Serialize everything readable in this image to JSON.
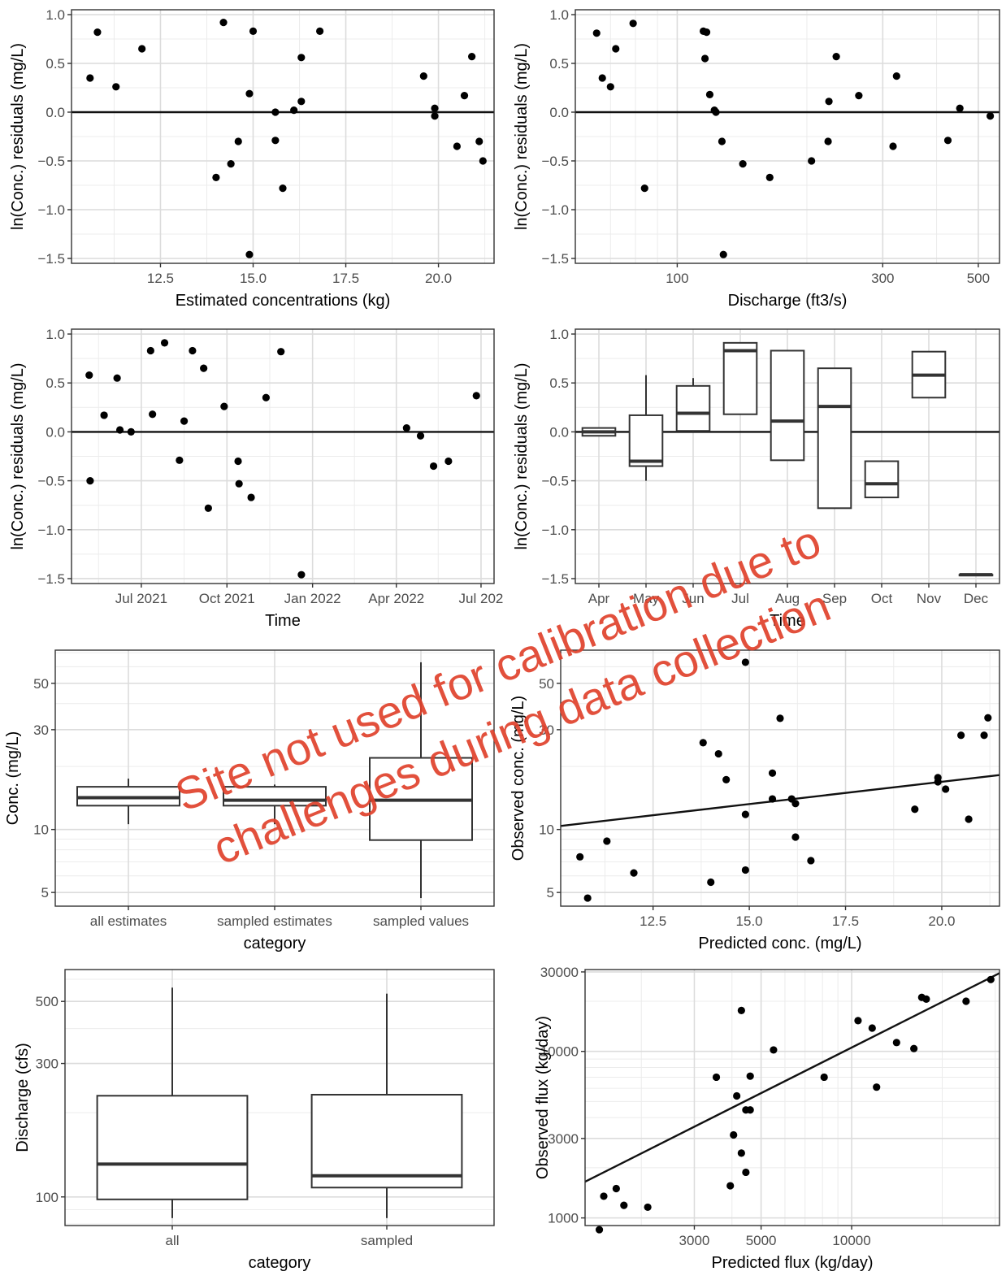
{
  "chart_data": [
    {
      "id": "p1",
      "type": "scatter",
      "xlabel": "Estimated concentrations (kg)",
      "ylabel": "ln(Conc.) residuals (mg/L)",
      "xlim": [
        10.1,
        21.5
      ],
      "ylim": [
        -1.55,
        1.05
      ],
      "xticks": [
        12.5,
        15.0,
        17.5,
        20.0
      ],
      "yticks": [
        -1.5,
        -1.0,
        -0.5,
        0.0,
        0.5,
        1.0
      ],
      "hline": 0,
      "points": [
        [
          10.6,
          0.35
        ],
        [
          10.8,
          0.82
        ],
        [
          11.3,
          0.26
        ],
        [
          12.0,
          0.65
        ],
        [
          14.0,
          -0.67
        ],
        [
          14.2,
          0.92
        ],
        [
          14.4,
          -0.53
        ],
        [
          14.6,
          -0.3
        ],
        [
          14.9,
          0.19
        ],
        [
          14.9,
          -1.46
        ],
        [
          15.0,
          0.83
        ],
        [
          15.6,
          -0.29
        ],
        [
          15.6,
          0.0
        ],
        [
          15.8,
          -0.78
        ],
        [
          16.1,
          0.02
        ],
        [
          16.3,
          0.56
        ],
        [
          16.3,
          0.11
        ],
        [
          16.8,
          0.83
        ],
        [
          19.6,
          0.37
        ],
        [
          19.9,
          0.04
        ],
        [
          19.9,
          -0.04
        ],
        [
          20.5,
          -0.35
        ],
        [
          20.7,
          0.17
        ],
        [
          20.9,
          0.57
        ],
        [
          21.1,
          -0.3
        ],
        [
          21.2,
          -0.5
        ]
      ]
    },
    {
      "id": "p2",
      "type": "scatter",
      "xlabel": "Discharge (ft3/s)",
      "ylabel": "ln(Conc.) residuals (mg/L)",
      "xlog": true,
      "xlim": [
        58,
        560
      ],
      "ylim": [
        -1.55,
        1.05
      ],
      "xticks": [
        100,
        300,
        500
      ],
      "xminor": [
        70,
        80,
        90,
        200,
        400
      ],
      "yticks": [
        -1.5,
        -1.0,
        -0.5,
        0.0,
        0.5,
        1.0
      ],
      "hline": 0,
      "points": [
        [
          65,
          0.81
        ],
        [
          67,
          0.35
        ],
        [
          70,
          0.26
        ],
        [
          72,
          0.65
        ],
        [
          79,
          0.91
        ],
        [
          84,
          -0.78
        ],
        [
          115,
          0.83
        ],
        [
          117,
          0.82
        ],
        [
          116,
          0.55
        ],
        [
          119,
          0.18
        ],
        [
          122,
          0.02
        ],
        [
          123,
          0.0
        ],
        [
          127,
          -0.3
        ],
        [
          128,
          -1.46
        ],
        [
          142,
          -0.53
        ],
        [
          164,
          -0.67
        ],
        [
          205,
          -0.5
        ],
        [
          224,
          -0.3
        ],
        [
          225,
          0.11
        ],
        [
          234,
          0.57
        ],
        [
          264,
          0.17
        ],
        [
          317,
          -0.35
        ],
        [
          323,
          0.37
        ],
        [
          425,
          -0.29
        ],
        [
          453,
          0.04
        ],
        [
          533,
          -0.04
        ]
      ]
    },
    {
      "id": "p3",
      "type": "scatter",
      "xlabel": "Time",
      "ylabel": "ln(Conc.) residuals (mg/L)",
      "xdate": true,
      "xlim": [
        "2021-04-17",
        "2022-07-15"
      ],
      "ylim": [
        -1.55,
        1.05
      ],
      "xticks": [
        "2021-07-01",
        "2021-10-01",
        "2022-01-01",
        "2022-04-01",
        "2022-07-01"
      ],
      "xticklabels": [
        "Jul 2021",
        "Oct 2021",
        "Jan 2022",
        "Apr 2022",
        "Jul 202"
      ],
      "xminor": [
        "2021-05-16",
        "2021-08-16",
        "2021-11-16",
        "2022-02-15",
        "2022-05-16"
      ],
      "yticks": [
        -1.5,
        -1.0,
        -0.5,
        0.0,
        0.5,
        1.0
      ],
      "hline": 0,
      "points": [
        [
          "2021-05-06",
          0.58
        ],
        [
          "2021-05-07",
          -0.5
        ],
        [
          "2021-05-22",
          0.17
        ],
        [
          "2021-06-05",
          0.55
        ],
        [
          "2021-06-08",
          0.02
        ],
        [
          "2021-06-20",
          0.0
        ],
        [
          "2021-07-11",
          0.83
        ],
        [
          "2021-07-13",
          0.18
        ],
        [
          "2021-07-26",
          0.91
        ],
        [
          "2021-08-11",
          -0.29
        ],
        [
          "2021-08-16",
          0.11
        ],
        [
          "2021-08-25",
          0.83
        ],
        [
          "2021-09-06",
          0.65
        ],
        [
          "2021-09-11",
          -0.78
        ],
        [
          "2021-09-28",
          0.26
        ],
        [
          "2021-10-13",
          -0.3
        ],
        [
          "2021-10-14",
          -0.53
        ],
        [
          "2021-10-27",
          -0.67
        ],
        [
          "2021-11-12",
          0.35
        ],
        [
          "2021-11-28",
          0.82
        ],
        [
          "2021-12-20",
          -1.46
        ],
        [
          "2022-04-12",
          0.04
        ],
        [
          "2022-04-27",
          -0.04
        ],
        [
          "2022-05-11",
          -0.35
        ],
        [
          "2022-05-27",
          -0.3
        ],
        [
          "2022-06-26",
          0.37
        ]
      ]
    },
    {
      "id": "p4",
      "type": "box",
      "xlabel": "Time",
      "ylabel": "ln(Conc.) residuals (mg/L)",
      "ylim": [
        -1.55,
        1.05
      ],
      "yticks": [
        -1.5,
        -1.0,
        -0.5,
        0.0,
        0.5,
        1.0
      ],
      "hline": 0,
      "categories": [
        "Apr",
        "May",
        "Jun",
        "Jul",
        "Aug",
        "Sep",
        "Oct",
        "Nov",
        "Dec"
      ],
      "boxes": [
        {
          "cat": "Apr",
          "min": -0.04,
          "q1": -0.04,
          "med": 0.0,
          "q3": 0.04,
          "max": 0.04
        },
        {
          "cat": "May",
          "min": -0.5,
          "q1": -0.35,
          "med": -0.3,
          "q3": 0.17,
          "max": 0.58
        },
        {
          "cat": "Jun",
          "min": 0.0,
          "q1": 0.01,
          "med": 0.19,
          "q3": 0.47,
          "max": 0.55
        },
        {
          "cat": "Jul",
          "min": 0.18,
          "q1": 0.18,
          "med": 0.83,
          "q3": 0.91,
          "max": 0.91
        },
        {
          "cat": "Aug",
          "min": -0.29,
          "q1": -0.29,
          "med": 0.11,
          "q3": 0.83,
          "max": 0.83
        },
        {
          "cat": "Sep",
          "min": -0.78,
          "q1": -0.78,
          "med": 0.26,
          "q3": 0.65,
          "max": 0.65
        },
        {
          "cat": "Oct",
          "min": -0.67,
          "q1": -0.67,
          "med": -0.53,
          "q3": -0.3,
          "max": -0.3
        },
        {
          "cat": "Nov",
          "min": 0.35,
          "q1": 0.35,
          "med": 0.58,
          "q3": 0.82,
          "max": 0.82
        },
        {
          "cat": "Dec",
          "min": -1.46,
          "q1": -1.46,
          "med": -1.46,
          "q3": -1.46,
          "max": -1.46
        }
      ]
    },
    {
      "id": "p5",
      "type": "box",
      "xlabel": "category",
      "ylabel": "Conc. (mg/L)",
      "ylog": true,
      "ylim": [
        4.3,
        72
      ],
      "yticks": [
        5,
        10,
        30,
        50
      ],
      "yminor": [
        6,
        7,
        8,
        9,
        20,
        40,
        60,
        70
      ],
      "categories": [
        "all estimates",
        "sampled estimates",
        "sampled values"
      ],
      "boxes": [
        {
          "cat": "all estimates",
          "min": 10.6,
          "q1": 13.0,
          "med": 14.2,
          "q3": 16.0,
          "max": 17.5
        },
        {
          "cat": "sampled estimates",
          "min": 10.6,
          "q1": 13.0,
          "med": 13.8,
          "q3": 16.0,
          "max": 16.4
        },
        {
          "cat": "sampled values",
          "min": 4.7,
          "q1": 8.9,
          "med": 13.8,
          "q3": 22.0,
          "max": 63.0
        }
      ]
    },
    {
      "id": "p6",
      "type": "scatter",
      "xlabel": "Predicted conc. (mg/L)",
      "ylabel": "Observed conc. (mg/L)",
      "ylog": true,
      "xlim": [
        10.1,
        21.5
      ],
      "ylim": [
        4.3,
        72
      ],
      "xticks": [
        12.5,
        15.0,
        17.5,
        20.0
      ],
      "yticks": [
        5,
        10,
        30,
        50
      ],
      "yminor": [
        6,
        7,
        8,
        9,
        20,
        40,
        60,
        70
      ],
      "line": [
        [
          10.1,
          10.4
        ],
        [
          21.5,
          18.2
        ]
      ],
      "points": [
        [
          10.6,
          7.4
        ],
        [
          10.8,
          4.7
        ],
        [
          11.3,
          8.8
        ],
        [
          12.0,
          6.2
        ],
        [
          13.8,
          26.0
        ],
        [
          14.0,
          5.6
        ],
        [
          14.2,
          23.0
        ],
        [
          14.4,
          17.3
        ],
        [
          14.9,
          11.8
        ],
        [
          14.9,
          6.4
        ],
        [
          14.9,
          63.0
        ],
        [
          15.6,
          14.0
        ],
        [
          15.6,
          18.6
        ],
        [
          15.8,
          34.0
        ],
        [
          16.1,
          14.0
        ],
        [
          16.2,
          13.3
        ],
        [
          16.2,
          9.2
        ],
        [
          16.6,
          7.1
        ],
        [
          19.3,
          12.5
        ],
        [
          19.9,
          17.7
        ],
        [
          19.9,
          16.9
        ],
        [
          20.1,
          15.6
        ],
        [
          20.5,
          28.2
        ],
        [
          20.7,
          11.2
        ],
        [
          21.1,
          28.2
        ],
        [
          21.2,
          34.2
        ]
      ]
    },
    {
      "id": "p7",
      "type": "box",
      "xlabel": "category",
      "ylabel": "Discharge (cfs)",
      "ylog": true,
      "ylim": [
        79,
        650
      ],
      "yticks": [
        100,
        300,
        500
      ],
      "yminor": [
        80,
        90,
        200,
        400,
        600
      ],
      "categories": [
        "all",
        "sampled"
      ],
      "boxes": [
        {
          "cat": "all",
          "min": 84,
          "q1": 98,
          "med": 131,
          "q3": 230,
          "max": 560
        },
        {
          "cat": "sampled",
          "min": 84,
          "q1": 108,
          "med": 119,
          "q3": 232,
          "max": 533
        }
      ]
    },
    {
      "id": "p8",
      "type": "scatter",
      "xlabel": "Predicted flux (kg/day)",
      "ylabel": "Observed flux (kg/day)",
      "xlog": true,
      "ylog": true,
      "xlim": [
        1300,
        31000
      ],
      "ylim": [
        900,
        31000
      ],
      "xticks": [
        3000,
        5000,
        10000
      ],
      "xminor": [
        2000,
        4000,
        6000,
        7000,
        8000,
        9000,
        20000,
        30000
      ],
      "yticks": [
        1000,
        3000,
        10000,
        30000
      ],
      "yminor": [
        2000,
        4000,
        5000,
        6000,
        7000,
        8000,
        9000,
        20000
      ],
      "line": [
        [
          1300,
          1650
        ],
        [
          31000,
          29500
        ]
      ],
      "points": [
        [
          1450,
          850
        ],
        [
          1500,
          1350
        ],
        [
          1650,
          1500
        ],
        [
          1750,
          1190
        ],
        [
          2100,
          1160
        ],
        [
          3550,
          7000
        ],
        [
          3950,
          1560
        ],
        [
          4050,
          3150
        ],
        [
          4150,
          5400
        ],
        [
          4300,
          17600
        ],
        [
          4300,
          2450
        ],
        [
          4450,
          4450
        ],
        [
          4450,
          1880
        ],
        [
          4600,
          4450
        ],
        [
          4600,
          7100
        ],
        [
          5500,
          10200
        ],
        [
          8100,
          7000
        ],
        [
          10500,
          15300
        ],
        [
          11700,
          13800
        ],
        [
          12100,
          6100
        ],
        [
          14100,
          11300
        ],
        [
          16100,
          10400
        ],
        [
          17100,
          21100
        ],
        [
          17700,
          20600
        ],
        [
          24000,
          20000
        ],
        [
          29000,
          27000
        ]
      ]
    }
  ],
  "watermark": {
    "line1": "Site not used for calibration due to",
    "line2": "challenges during data collection",
    "color": "#e0412b"
  }
}
